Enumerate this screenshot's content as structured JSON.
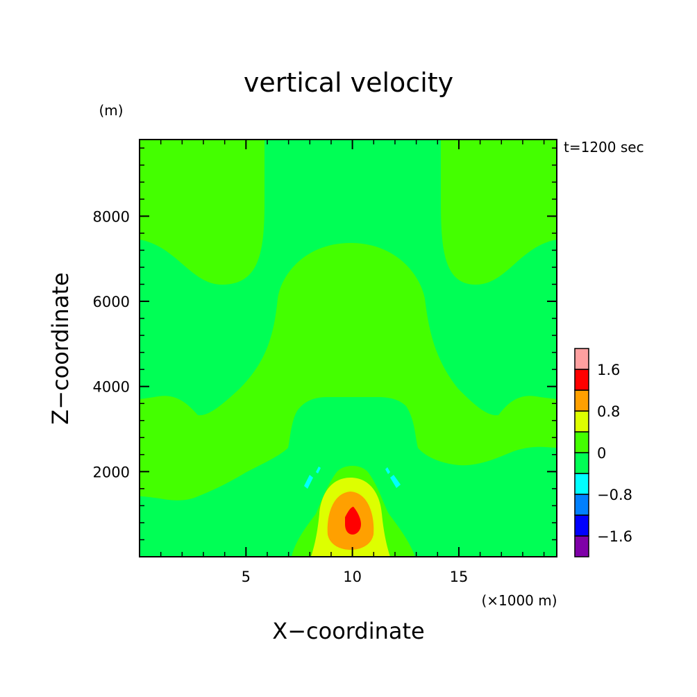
{
  "chart_data": {
    "type": "heatmap",
    "title": "vertical velocity",
    "xlabel": "X−coordinate",
    "ylabel": "Z−coordinate",
    "x_unit": "(×1000 m)",
    "y_unit": "(m)",
    "time_label": "t=1200 sec",
    "xlim": [
      0,
      19.6
    ],
    "ylim": [
      0,
      9800
    ],
    "x_ticks": [
      5,
      10,
      15
    ],
    "y_ticks": [
      2000,
      4000,
      6000,
      8000
    ],
    "x_tick_labels": [
      "5",
      "10",
      "15"
    ],
    "y_tick_labels": [
      "2000",
      "4000",
      "6000",
      "8000"
    ],
    "grid": false,
    "legend": "colorbar-right",
    "colorbar": {
      "levels": [
        -2.0,
        -1.6,
        -1.2,
        -0.8,
        -0.4,
        0,
        0.4,
        0.8,
        1.2,
        1.6,
        2.0
      ],
      "colors": [
        "#7f00a8",
        "#0000ff",
        "#0080ff",
        "#00ffff",
        "#00ff55",
        "#44ff00",
        "#ddff00",
        "#ffa000",
        "#ff0000",
        "#ffa0a0"
      ],
      "tick_values": [
        -1.6,
        -0.8,
        0,
        0.8,
        1.6
      ],
      "tick_labels": [
        "−1.6",
        "−0.8",
        "0",
        "0.8",
        "1.6"
      ]
    },
    "regions": [
      {
        "name": "upper-left",
        "level_color": "#44ff00",
        "x": [
          0,
          6
        ],
        "z": [
          6500,
          9800
        ]
      },
      {
        "name": "upper-right",
        "level_color": "#44ff00",
        "x": [
          14,
          19.6
        ],
        "z": [
          6500,
          9800
        ]
      },
      {
        "name": "middle-dome",
        "level_color": "#44ff00",
        "x": [
          6.5,
          13.6
        ],
        "z": [
          3700,
          7500
        ]
      },
      {
        "name": "lower-band",
        "level_color": "#44ff00",
        "x": [
          0,
          19.6
        ],
        "z": [
          1400,
          3800
        ]
      },
      {
        "name": "updraft-core",
        "level_color": "#ff0000",
        "x": [
          9.9,
          10.5
        ],
        "z": [
          600,
          1100
        ],
        "peak": 1.8
      }
    ]
  }
}
